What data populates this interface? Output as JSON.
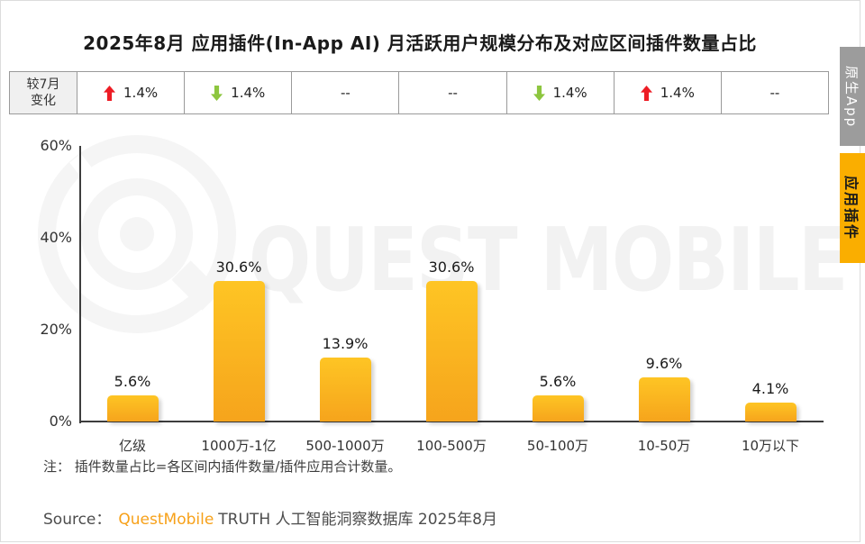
{
  "title": "2025年8月 应用插件(In-App AI) 月活跃用户规模分布及对应区间插件数量占比",
  "side_tabs": [
    {
      "label": "原生App",
      "active": false
    },
    {
      "label": "应用插件",
      "active": true
    }
  ],
  "change_table": {
    "header_lines": [
      "较7月",
      "变化"
    ],
    "cells": [
      {
        "direction": "up",
        "value": "1.4%"
      },
      {
        "direction": "down",
        "value": "1.4%"
      },
      {
        "direction": "none",
        "value": "--"
      },
      {
        "direction": "none",
        "value": "--"
      },
      {
        "direction": "down",
        "value": "1.4%"
      },
      {
        "direction": "up",
        "value": "1.4%"
      },
      {
        "direction": "none",
        "value": "--"
      }
    ]
  },
  "chart_data": {
    "type": "bar",
    "title": "2025年8月 应用插件(In-App AI) 月活跃用户规模分布及对应区间插件数量占比",
    "categories": [
      "亿级",
      "1000万-1亿",
      "500-1000万",
      "100-500万",
      "50-100万",
      "10-50万",
      "10万以下"
    ],
    "values": [
      5.6,
      30.6,
      13.9,
      30.6,
      5.6,
      9.6,
      4.1
    ],
    "value_labels": [
      "5.6%",
      "30.6%",
      "13.9%",
      "30.6%",
      "5.6%",
      "9.6%",
      "4.1%"
    ],
    "change_vs_july": [
      "+1.4%",
      "-1.4%",
      "--",
      "--",
      "-1.4%",
      "+1.4%",
      "--"
    ],
    "y_ticks": [
      {
        "value": 60,
        "label": "60%"
      },
      {
        "value": 40,
        "label": "40%"
      },
      {
        "value": 20,
        "label": "20%"
      },
      {
        "value": 0,
        "label": "0%"
      }
    ],
    "ylim": [
      0,
      60
    ],
    "xlabel": "",
    "ylabel": "",
    "grid": false,
    "legend": "none"
  },
  "watermark": {
    "text": "QUEST MOBILE"
  },
  "note": "注：  插件数量占比=各区间内插件数量/插件应用合计数量。",
  "source": {
    "prefix": "Source：",
    "brand": "QuestMobile",
    "suffix": "TRUTH 人工智能洞察数据库 2025年8月"
  },
  "colors": {
    "bar_top": "#FEC524",
    "bar_bottom": "#F6A41C",
    "accent_yellow": "#FAAE00",
    "tab_gray": "#9C9C9C",
    "up_red": "#ED1C24",
    "down_green": "#8DC63F"
  }
}
